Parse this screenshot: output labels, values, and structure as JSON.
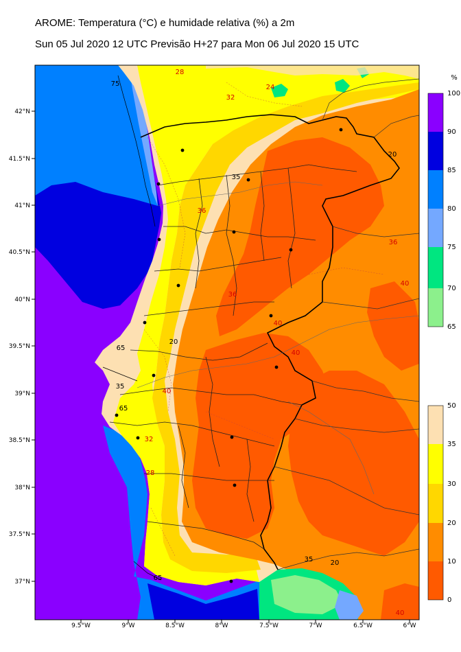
{
  "title_line1": "AROME: Temperatura (°C) e humidade relativa (%) a 2m",
  "title_line2": "Sun 05 Jul 2020 12 UTC Previsão H+27 para Mon 06 Jul 2020 15 UTC",
  "lat_labels": [
    "42°N",
    "41.5°N",
    "41°N",
    "40.5°N",
    "40°N",
    "39.5°N",
    "39°N",
    "38.5°N",
    "38°N",
    "37.5°N",
    "37°N"
  ],
  "lon_labels": [
    "9.5°W",
    "9°W",
    "8.5°W",
    "8°W",
    "7.5°W",
    "7°W",
    "6.5°W",
    "6°W"
  ],
  "humidity_colorbar": {
    "unit": "%",
    "ticks": [
      "100",
      "90",
      "85",
      "80",
      "75",
      "70",
      "65"
    ],
    "colors": [
      "#8a00ff",
      "#0000e0",
      "#0080ff",
      "#74a8ff",
      "#00e680",
      "#8cf08c"
    ]
  },
  "temperature_colorbar": {
    "ticks": [
      "50",
      "35",
      "30",
      "20",
      "10",
      "0"
    ],
    "colors": [
      "#fde0b2",
      "#ffff00",
      "#ffd700",
      "#ff8c00",
      "#ff5a00"
    ]
  },
  "contour_labels": [
    {
      "text": "75",
      "color": "#000"
    },
    {
      "text": "65",
      "color": "#000"
    },
    {
      "text": "35",
      "color": "#000"
    },
    {
      "text": "20",
      "color": "#000"
    },
    {
      "text": "65",
      "color": "#000"
    },
    {
      "text": "35",
      "color": "#000"
    },
    {
      "text": "20",
      "color": "#000"
    },
    {
      "text": "35",
      "color": "#000"
    },
    {
      "text": "20",
      "color": "#000"
    },
    {
      "text": "65",
      "color": "#000"
    },
    {
      "text": "28",
      "color": "#d40000"
    },
    {
      "text": "32",
      "color": "#d40000"
    },
    {
      "text": "24",
      "color": "#d40000"
    },
    {
      "text": "36",
      "color": "#d40000"
    },
    {
      "text": "40",
      "color": "#d40000"
    },
    {
      "text": "40",
      "color": "#d40000"
    },
    {
      "text": "36",
      "color": "#d40000"
    },
    {
      "text": "40",
      "color": "#d40000"
    },
    {
      "text": "36",
      "color": "#d40000"
    },
    {
      "text": "40",
      "color": "#d40000"
    },
    {
      "text": "32",
      "color": "#d40000"
    },
    {
      "text": "28",
      "color": "#d40000"
    },
    {
      "text": "40",
      "color": "#d40000"
    }
  ]
}
